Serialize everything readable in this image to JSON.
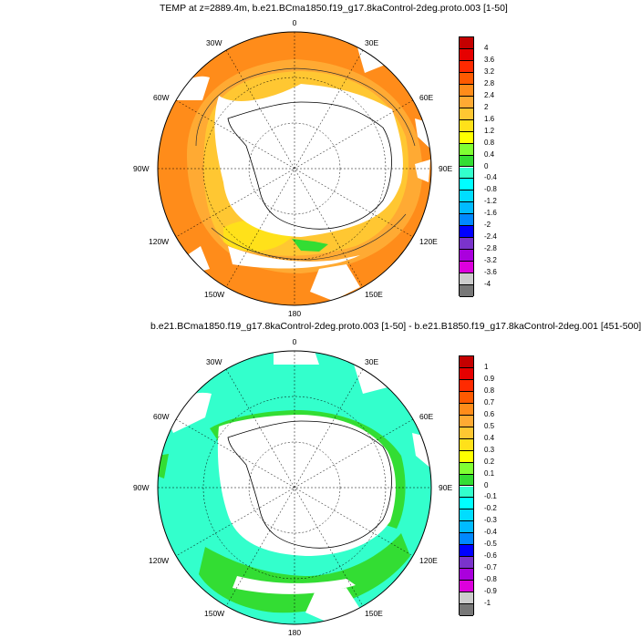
{
  "panels": [
    {
      "title": "TEMP at z=2889.4m, b.e21.BCma1850.f19_g17.8kaControl-2deg.proto.003 [1-50]",
      "lon_labels": {
        "n": "0",
        "nne": "30E",
        "ene": "60E",
        "e": "90E",
        "ese": "120E",
        "sse": "150E",
        "s": "180",
        "ssw": "150W",
        "wsw": "120W",
        "w": "90W",
        "wnw": "60W",
        "nnw": "30W"
      },
      "colorbar": {
        "labels": [
          "4",
          "3.6",
          "3.2",
          "2.8",
          "2.4",
          "2",
          "1.6",
          "1.2",
          "0.8",
          "0.4",
          "0",
          "-0.4",
          "-0.8",
          "-1.2",
          "-1.6",
          "-2",
          "-2.4",
          "-2.8",
          "-3.2",
          "-3.6",
          "-4"
        ],
        "colors": [
          "#c40000",
          "#e60000",
          "#ff2a00",
          "#ff5a00",
          "#ff8c1a",
          "#ffaa33",
          "#ffc732",
          "#ffe11a",
          "#ffff00",
          "#80ff33",
          "#33dd33",
          "#33ffcc",
          "#00ffff",
          "#00ddff",
          "#00bbff",
          "#0088ff",
          "#0000ff",
          "#7a33cc",
          "#aa00dd",
          "#dd00dd",
          "#cccccc",
          "#777777"
        ]
      },
      "fill_colors": {
        "main": "#ffc732",
        "outer": "#ff8c1a",
        "mid": "#ffaa33",
        "warm": "#ffe11a",
        "green": "#33dd33"
      }
    },
    {
      "title": "b.e21.BCma1850.f19_g17.8kaControl-2deg.proto.003 [1-50] - b.e21.B1850.f19_g17.8kaControl-2deg.001 [451-500]",
      "lon_labels": {
        "n": "0",
        "nne": "30E",
        "ene": "60E",
        "e": "90E",
        "ese": "120E",
        "sse": "150E",
        "s": "180",
        "ssw": "150W",
        "wsw": "120W",
        "w": "90W",
        "wnw": "60W",
        "nnw": "30W"
      },
      "colorbar": {
        "labels": [
          "1",
          "0.9",
          "0.8",
          "0.7",
          "0.6",
          "0.5",
          "0.4",
          "0.3",
          "0.2",
          "0.1",
          "0",
          "-0.1",
          "-0.2",
          "-0.3",
          "-0.4",
          "-0.5",
          "-0.6",
          "-0.7",
          "-0.8",
          "-0.9",
          "-1"
        ],
        "colors": [
          "#c40000",
          "#e60000",
          "#ff2a00",
          "#ff5a00",
          "#ff8c1a",
          "#ffaa33",
          "#ffc732",
          "#ffe11a",
          "#ffff00",
          "#80ff33",
          "#33dd33",
          "#33ffcc",
          "#00ffff",
          "#00ddff",
          "#00bbff",
          "#0088ff",
          "#0000ff",
          "#7a33cc",
          "#aa00dd",
          "#dd00dd",
          "#cccccc",
          "#777777"
        ]
      },
      "fill_colors": {
        "main": "#33ffcc",
        "green": "#33dd33"
      }
    }
  ]
}
